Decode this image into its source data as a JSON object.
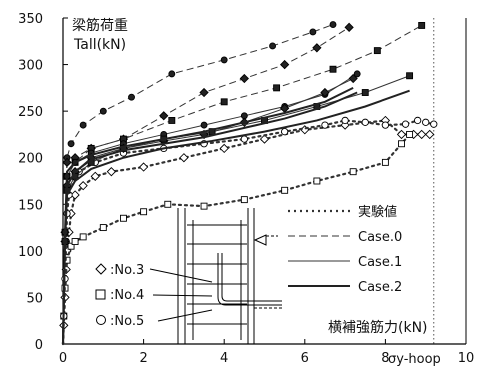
{
  "chart_data": {
    "type": "line",
    "ylabel_line1": "梁筋荷重",
    "ylabel_line2": "Tall(kN)",
    "xlabel": "横補強筋力(kN)",
    "yield_label": "σy-hoop",
    "xlim": [
      0,
      10
    ],
    "ylim": [
      0,
      350
    ],
    "x_ticks": [
      0,
      2,
      4,
      6,
      8,
      10
    ],
    "y_ticks": [
      0,
      50,
      100,
      150,
      200,
      250,
      300,
      350
    ],
    "grid": false,
    "yield_x": 9.2,
    "legend_lines": [
      {
        "label": "実験値",
        "style": "dotted"
      },
      {
        "label": "Case.0",
        "style": "dashed"
      },
      {
        "label": "Case.1",
        "style": "thin"
      },
      {
        "label": "Case.2",
        "style": "thick"
      }
    ],
    "specimen_labels": [
      {
        "marker": "diamond",
        "label": ":No.3"
      },
      {
        "marker": "square",
        "label": ":No.4"
      },
      {
        "marker": "circle",
        "label": ":No.5"
      }
    ],
    "series": [
      {
        "specimen": "No.3",
        "style": "dotted",
        "marker": "diamond",
        "x": [
          0,
          0.02,
          0.05,
          0.08,
          0.1,
          0.15,
          0.2,
          0.3,
          0.5,
          0.8,
          1.2,
          2.0,
          3.0,
          4.0,
          5.0,
          6.0,
          7.0,
          8.0,
          8.4,
          8.7,
          8.9,
          9.1
        ],
        "y": [
          0,
          20,
          50,
          80,
          100,
          120,
          140,
          160,
          170,
          180,
          185,
          190,
          200,
          210,
          220,
          230,
          235,
          240,
          225,
          225,
          225,
          225
        ]
      },
      {
        "specimen": "No.4",
        "style": "dotted",
        "marker": "square",
        "x": [
          0,
          0.02,
          0.05,
          0.1,
          0.2,
          0.3,
          0.5,
          1.0,
          1.5,
          2.0,
          2.6,
          3.5,
          4.5,
          5.5,
          6.3,
          7.2,
          8.0,
          8.4,
          8.6
        ],
        "y": [
          0,
          30,
          60,
          90,
          105,
          110,
          115,
          125,
          135,
          142,
          150,
          148,
          155,
          165,
          175,
          185,
          195,
          215,
          225
        ]
      },
      {
        "specimen": "No.5",
        "style": "dotted",
        "marker": "circle",
        "x": [
          0,
          0.02,
          0.05,
          0.08,
          0.1,
          0.15,
          0.2,
          0.4,
          0.8,
          1.5,
          2.5,
          3.5,
          4.5,
          5.5,
          6.5,
          7.0,
          7.5,
          8.0,
          8.5,
          8.8,
          9.0,
          9.2
        ],
        "y": [
          0,
          30,
          70,
          110,
          140,
          160,
          175,
          185,
          195,
          205,
          210,
          215,
          220,
          228,
          235,
          240,
          238,
          235,
          236,
          240,
          238,
          236
        ]
      },
      {
        "specimen": "No.5",
        "style": "dashed",
        "marker": "circle",
        "x": [
          0,
          0.05,
          0.1,
          0.2,
          0.5,
          1.0,
          1.7,
          2.7,
          4.0,
          5.2,
          6.2,
          6.7
        ],
        "y": [
          0,
          120,
          200,
          215,
          235,
          250,
          265,
          290,
          305,
          320,
          335,
          343
        ]
      },
      {
        "specimen": "No.3",
        "style": "dashed",
        "marker": "diamond",
        "x": [
          0,
          0.05,
          0.1,
          0.3,
          0.7,
          1.5,
          2.5,
          3.5,
          4.5,
          5.5,
          6.3,
          7.1
        ],
        "y": [
          0,
          120,
          195,
          200,
          210,
          220,
          245,
          270,
          285,
          300,
          318,
          340
        ]
      },
      {
        "specimen": "No.4",
        "style": "dashed",
        "marker": "square",
        "x": [
          0,
          0.05,
          0.1,
          0.3,
          0.7,
          1.5,
          2.7,
          4.0,
          5.3,
          6.7,
          7.8,
          8.9
        ],
        "y": [
          0,
          120,
          180,
          195,
          210,
          220,
          240,
          260,
          275,
          295,
          315,
          342
        ]
      },
      {
        "specimen": "No.5",
        "style": "thin",
        "marker": "circle",
        "x": [
          0,
          0.05,
          0.1,
          0.3,
          0.7,
          1.5,
          2.5,
          3.5,
          4.5,
          5.5,
          6.5,
          7.3
        ],
        "y": [
          0,
          120,
          180,
          195,
          205,
          215,
          225,
          235,
          245,
          255,
          268,
          290
        ]
      },
      {
        "specimen": "No.3",
        "style": "thin",
        "marker": "diamond",
        "x": [
          0,
          0.05,
          0.1,
          0.3,
          0.7,
          1.5,
          2.5,
          3.5,
          4.5,
          5.5,
          6.5,
          7.2
        ],
        "y": [
          0,
          110,
          170,
          185,
          200,
          210,
          218,
          225,
          238,
          253,
          270,
          285
        ]
      },
      {
        "specimen": "No.4",
        "style": "thin",
        "marker": "square",
        "x": [
          0,
          0.05,
          0.1,
          0.3,
          0.7,
          1.5,
          2.5,
          3.7,
          5.0,
          6.3,
          7.5,
          8.6
        ],
        "y": [
          0,
          110,
          165,
          180,
          195,
          210,
          220,
          228,
          240,
          255,
          270,
          288
        ]
      },
      {
        "specimen": "No.5",
        "style": "thick",
        "marker": "none",
        "x": [
          0,
          0.05,
          0.1,
          0.3,
          0.7,
          1.5,
          2.5,
          3.5,
          4.5,
          5.5,
          6.5,
          7.2
        ],
        "y": [
          0,
          120,
          185,
          195,
          203,
          212,
          220,
          228,
          238,
          248,
          260,
          275
        ]
      },
      {
        "specimen": "No.3",
        "style": "thick",
        "marker": "none",
        "x": [
          0,
          0.05,
          0.1,
          0.3,
          0.7,
          1.5,
          2.5,
          3.5,
          4.5,
          5.5,
          6.5,
          7.3
        ],
        "y": [
          0,
          110,
          170,
          185,
          198,
          208,
          215,
          222,
          232,
          242,
          255,
          270
        ]
      },
      {
        "specimen": "No.4",
        "style": "thick",
        "marker": "none",
        "x": [
          0,
          0.05,
          0.1,
          0.3,
          0.7,
          1.5,
          2.5,
          3.7,
          5.0,
          6.3,
          7.5,
          8.6
        ],
        "y": [
          0,
          110,
          160,
          175,
          188,
          200,
          210,
          218,
          228,
          240,
          255,
          272
        ]
      }
    ]
  }
}
